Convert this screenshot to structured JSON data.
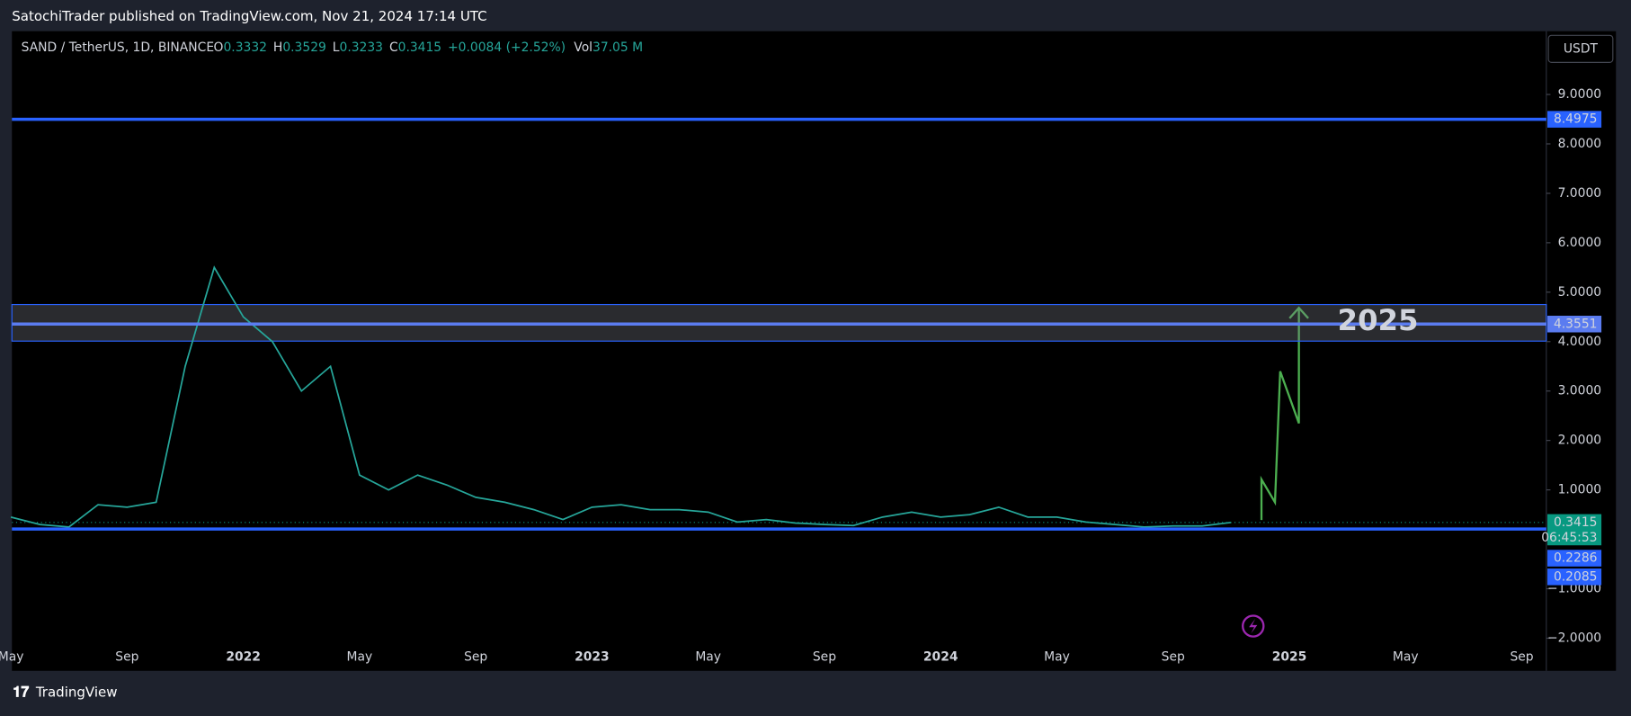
{
  "header": {
    "publisher": "SatochiTrader published on TradingView.com, Nov 21, 2024 17:14 UTC",
    "brand": "TradingView",
    "currency_button": "USDT"
  },
  "chart_data": {
    "type": "line",
    "title": "SAND / TetherUS, 1D, BINANCE",
    "ohlc": [
      {
        "label": "O",
        "value": 0.3332
      },
      {
        "label": "H",
        "value": 0.3529
      },
      {
        "label": "L",
        "value": 0.3233
      },
      {
        "label": "C",
        "value": 0.3415
      }
    ],
    "change": "+0.0084 (+2.52%)",
    "volume_label": "Vol",
    "volume": "37.05 M",
    "categories": [
      "May",
      null,
      null,
      null,
      "Sep",
      null,
      null,
      null,
      "2022",
      null,
      null,
      null,
      "May",
      null,
      null,
      null,
      "Sep",
      null,
      null,
      null,
      "2023",
      null,
      null,
      null,
      "May",
      null,
      null,
      null,
      "Sep",
      null,
      null,
      null,
      "2024",
      null,
      null,
      null,
      "May",
      null,
      null,
      null,
      "Sep",
      null,
      null,
      null,
      "2025",
      null,
      null,
      null,
      "May",
      null,
      null,
      null,
      "Sep"
    ],
    "series": [
      {
        "name": "SAND / TetherUS",
        "color": "#26a69a",
        "values": [
          0.45,
          0.3,
          0.25,
          0.7,
          0.65,
          0.75,
          3.5,
          5.5,
          4.5,
          4.0,
          3.0,
          3.5,
          1.3,
          1.0,
          1.3,
          1.1,
          0.85,
          0.75,
          0.6,
          0.4,
          0.65,
          0.7,
          0.6,
          0.6,
          0.55,
          0.35,
          0.4,
          0.33,
          0.3,
          0.28,
          0.45,
          0.55,
          0.45,
          0.5,
          0.65,
          0.45,
          0.45,
          0.35,
          0.3,
          0.25,
          0.27,
          0.27,
          0.3415,
          null,
          null,
          null,
          null,
          null,
          null,
          null,
          null,
          null,
          null
        ]
      }
    ],
    "ylim": [
      -2.66,
      10.28
    ],
    "yticks": [
      {
        "value": 9,
        "label": "9.0000"
      },
      {
        "value": 8,
        "label": "8.0000"
      },
      {
        "value": 7,
        "label": "7.0000"
      },
      {
        "value": 6,
        "label": "6.0000"
      },
      {
        "value": 5,
        "label": "5.0000"
      },
      {
        "value": 4,
        "label": "4.0000"
      },
      {
        "value": 3,
        "label": "3.0000"
      },
      {
        "value": 2,
        "label": "2.0000"
      },
      {
        "value": 1,
        "label": "1.0000"
      },
      {
        "value": -1,
        "label": "−1.0000"
      },
      {
        "value": -2,
        "label": "−2.0000"
      }
    ],
    "levels": [
      {
        "value": 8.4975,
        "color": "#2962ff"
      },
      {
        "value": 4.3551,
        "color": "#5b7cf0"
      },
      {
        "value": 0.2085,
        "color": "#2962ff"
      }
    ],
    "zone": [
      4.01,
      4.75
    ],
    "box_label": 0.2286,
    "last_price": 0.3415,
    "countdown": "06:45:53",
    "annotation": "2025"
  }
}
